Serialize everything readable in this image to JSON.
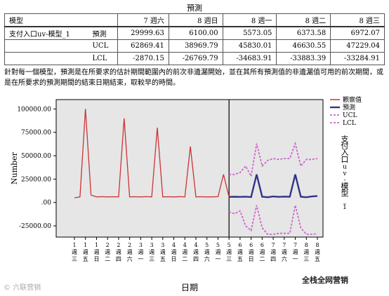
{
  "title": "預測",
  "table": {
    "corner": "模型",
    "columns": [
      "7 週六",
      "8 週日",
      "8 週一",
      "8 週二",
      "8 週三"
    ],
    "model": "支付入口uv-模型_1",
    "rows": [
      {
        "stat": "預測",
        "values": [
          "29999.63",
          "6100.00",
          "5573.05",
          "6373.58",
          "6972.07"
        ]
      },
      {
        "stat": "UCL",
        "values": [
          "62869.41",
          "38969.79",
          "45830.01",
          "46630.55",
          "47229.04"
        ]
      },
      {
        "stat": "LCL",
        "values": [
          "-2870.15",
          "-26769.79",
          "-34683.91",
          "-33883.39",
          "-33284.91"
        ]
      }
    ]
  },
  "footnote": "針對每一個模型，預測是在所要求的估計期間範圍內的前次非遺漏開始，並在其所有預測值的非遺漏值可用的前次期間，或是在所要求的預測期間的結束日期結束，取較早的時間。",
  "watermark_left": "© 六联营销",
  "watermark_right": "全栈全网营销",
  "chart_data": {
    "type": "line",
    "xlabel": "日期",
    "ylabel": "Number",
    "right_label": "支付入口uv-模型_1",
    "ylim": [
      -37000,
      110000
    ],
    "yticks": [
      -25000,
      0,
      25000,
      50000,
      75000,
      100000
    ],
    "ytick_labels": [
      "-25000.00",
      ".00",
      "25000.00",
      "50000.00",
      "75000.00",
      "100000.00"
    ],
    "x_tick_top": [
      "1",
      "1",
      "1",
      "2",
      "2",
      "2",
      "3",
      "3",
      "3",
      "4",
      "4",
      "4",
      "5",
      "5",
      "5",
      "6",
      "6",
      "6",
      "7",
      "7",
      "7",
      "8",
      "8"
    ],
    "x_tick_bottom": [
      "週三",
      "週五",
      "週日",
      "週二",
      "週四",
      "週六",
      "週一",
      "週三",
      "週五",
      "週日",
      "週二",
      "週四",
      "週六",
      "週一",
      "週三",
      "週五",
      "週日",
      "週二",
      "週四",
      "週六",
      "週一",
      "週三",
      "週五"
    ],
    "colors": {
      "observed": "#cc3333",
      "forecast": "#33338a",
      "ucl": "#cc66cc",
      "lcl": "#cc66cc",
      "divider": "#000000",
      "plot_bg": "#e6e6e6"
    },
    "legend": [
      "觀察值",
      "預測",
      "UCL",
      "LCL"
    ],
    "forecast_start_index": 28,
    "observed": [
      5000,
      6000,
      100000,
      8000,
      6000,
      6200,
      6000,
      6100,
      6000,
      90000,
      6000,
      6100,
      6000,
      6200,
      6000,
      80000,
      6000,
      6100,
      6000,
      6200,
      6000,
      60000,
      6000,
      6100,
      6000,
      6000,
      6200,
      30000,
      6000
    ],
    "forecast": [
      6000,
      6100,
      6000,
      6200,
      5800,
      30000,
      6100,
      5600,
      6400,
      6000,
      6300,
      6100,
      30000,
      6100,
      5600,
      6400,
      6972
    ],
    "ucl": [
      30000,
      30000,
      32000,
      39000,
      28000,
      63000,
      39000,
      45000,
      47000,
      46000,
      47000,
      47000,
      63000,
      39000,
      46000,
      46000,
      47000
    ],
    "lcl": [
      -10000,
      -12000,
      -9000,
      -25000,
      -30000,
      -3000,
      -27000,
      -34000,
      -34000,
      -33000,
      -33000,
      -33000,
      -3000,
      -27000,
      -34000,
      -34000,
      -33500
    ]
  }
}
